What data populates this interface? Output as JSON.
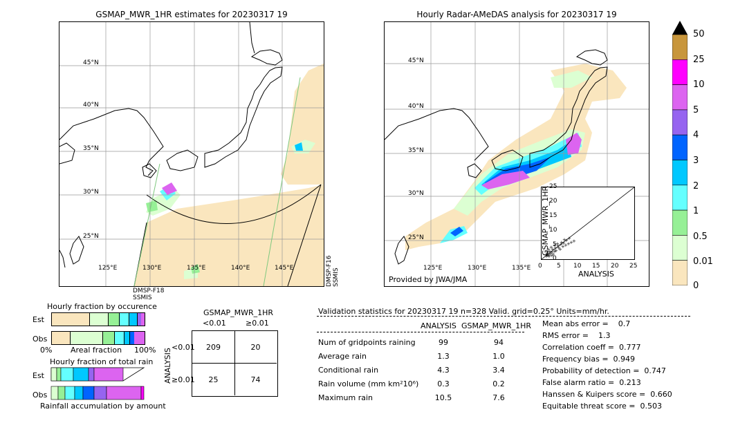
{
  "left_map": {
    "title": "GSMAP_MWR_1HR estimates for 20230317 19",
    "lat_labels": [
      "45°N",
      "40°N",
      "35°N",
      "30°N",
      "25°N"
    ],
    "lon_labels": [
      "125°E",
      "130°E",
      "135°E",
      "140°E",
      "145°E"
    ],
    "sat_label_bottom": [
      "DMSP-F18",
      "SSMIS"
    ],
    "sat_label_right": [
      "DMSP-F16",
      "SSMIS"
    ]
  },
  "right_map": {
    "title": "Hourly Radar-AMeDAS analysis for 20230317 19",
    "lat_labels": [
      "45°N",
      "40°N",
      "35°N",
      "30°N",
      "25°N"
    ],
    "lon_labels": [
      "125°E",
      "130°E",
      "135°E"
    ],
    "credit": "Provided by JWA/JMA"
  },
  "colorbar": {
    "labels": [
      "50",
      "25",
      "10",
      "5",
      "4",
      "3",
      "2",
      "1",
      "0.5",
      "0.01",
      "0"
    ],
    "colors": [
      "#c8963c",
      "#ff00ff",
      "#dc64f0",
      "#9664f0",
      "#0064ff",
      "#00c8ff",
      "#64ffff",
      "#96f096",
      "#dcffd2",
      "#fae6be"
    ]
  },
  "scatter": {
    "xlabel": "ANALYSIS",
    "ylabel": "GSMAP_MWR_1HR",
    "ticks": [
      "0",
      "5",
      "10",
      "15",
      "20",
      "25"
    ]
  },
  "chart_data": {
    "type": "table",
    "header": "Validation statistics for 20230317 19  n=328 Valid. grid=0.25° Units=mm/hr.",
    "columns": [
      "ANALYSIS",
      "GSMAP_MWR_1HR"
    ],
    "rows": [
      {
        "label": "Num of gridpoints raining",
        "analysis": "99",
        "gsmap": "94"
      },
      {
        "label": "Average rain",
        "analysis": "1.3",
        "gsmap": "1.0"
      },
      {
        "label": "Conditional rain",
        "analysis": "4.3",
        "gsmap": "3.4"
      },
      {
        "label": "Rain volume (mm km²10⁶)",
        "analysis": "0.3",
        "gsmap": "0.2"
      },
      {
        "label": "Maximum rain",
        "analysis": "10.5",
        "gsmap": "7.6"
      }
    ],
    "scores": [
      "Mean abs error =    0.7",
      "RMS error =    1.3",
      "Correlation coeff =  0.777",
      "Frequency bias =  0.949",
      "Probability of detection =  0.747",
      "False alarm ratio =  0.213",
      "Hanssen & Kuipers score =  0.660",
      "Equitable threat score =  0.503"
    ],
    "contingency": {
      "title": "GSMAP_MWR_1HR",
      "col_labels": [
        "<0.01",
        "≥0.01"
      ],
      "row_labels": [
        "<0.01",
        "≥0.01"
      ],
      "row_axis": "ANALYSIS",
      "cells": [
        [
          "209",
          "20"
        ],
        [
          "25",
          "74"
        ]
      ]
    }
  },
  "fractions": {
    "occ_title": "Hourly fraction by occurence",
    "total_title": "Hourly fraction of total rain",
    "accum_label": "Rainfall accumulation by amount",
    "row_est": "Est",
    "row_obs": "Obs",
    "axis_left": "0%",
    "axis_mid": "Areal fraction",
    "axis_right": "100%"
  }
}
